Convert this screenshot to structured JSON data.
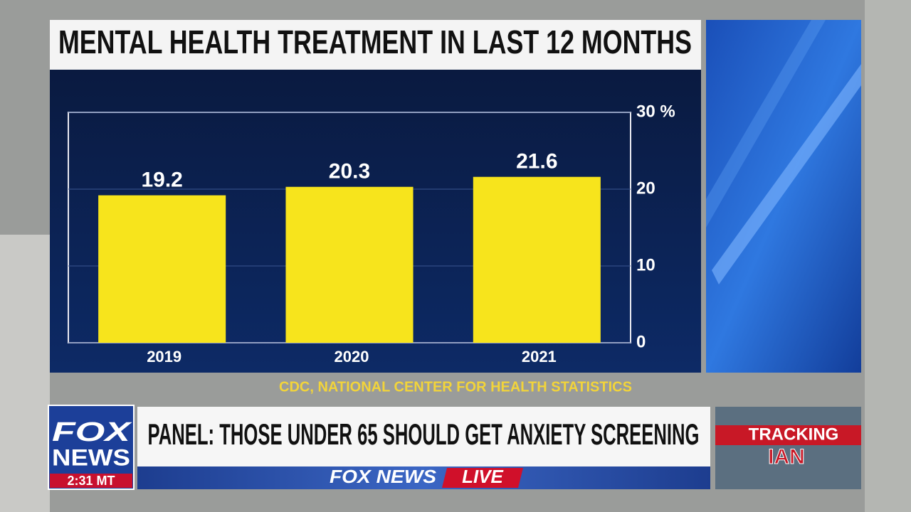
{
  "chart_data": {
    "type": "bar",
    "title": "MENTAL HEALTH TREATMENT IN LAST 12 MONTHS",
    "categories": [
      "2019",
      "2020",
      "2021"
    ],
    "values": [
      19.2,
      20.3,
      21.6
    ],
    "color": "#f7e41c",
    "ylim": [
      0,
      30
    ],
    "yticks": [
      0,
      10,
      20,
      {
        "value": 30,
        "label": "30 %"
      }
    ],
    "grid": true,
    "source": "CDC, NATIONAL CENTER FOR HEALTH STATISTICS"
  },
  "broadcast": {
    "headline": "PANEL: THOSE UNDER 65 SHOULD GET ANXIETY SCREENING",
    "logo_top": "FOX",
    "logo_bottom": "NEWS",
    "time": "2:31 MT",
    "strip_brand": "FOX NEWS",
    "strip_live": "LIVE",
    "tracking_top": "TRACKING",
    "tracking_bottom": "IAN"
  }
}
